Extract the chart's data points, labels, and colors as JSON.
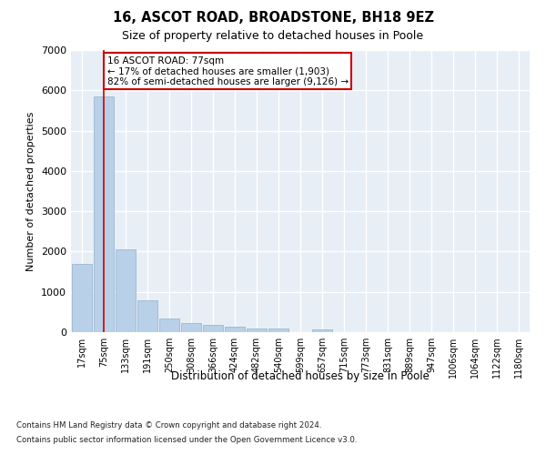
{
  "title1": "16, ASCOT ROAD, BROADSTONE, BH18 9EZ",
  "title2": "Size of property relative to detached houses in Poole",
  "xlabel": "Distribution of detached houses by size in Poole",
  "ylabel": "Number of detached properties",
  "categories": [
    "17sqm",
    "75sqm",
    "133sqm",
    "191sqm",
    "250sqm",
    "308sqm",
    "366sqm",
    "424sqm",
    "482sqm",
    "540sqm",
    "599sqm",
    "657sqm",
    "715sqm",
    "773sqm",
    "831sqm",
    "889sqm",
    "947sqm",
    "1006sqm",
    "1064sqm",
    "1122sqm",
    "1180sqm"
  ],
  "values": [
    1700,
    5850,
    2050,
    790,
    340,
    225,
    170,
    130,
    95,
    80,
    0,
    60,
    0,
    0,
    0,
    0,
    0,
    0,
    0,
    0,
    0
  ],
  "bar_color": "#b8d0e8",
  "bar_edge_color": "#9ab8d0",
  "annotation_line1": "16 ASCOT ROAD: 77sqm",
  "annotation_line2": "← 17% of detached houses are smaller (1,903)",
  "annotation_line3": "82% of semi-detached houses are larger (9,126) →",
  "annotation_box_color": "#ffffff",
  "annotation_box_edge": "#cc0000",
  "vline_color": "#cc0000",
  "vline_x_index": 1,
  "ylim": [
    0,
    7000
  ],
  "yticks": [
    0,
    1000,
    2000,
    3000,
    4000,
    5000,
    6000,
    7000
  ],
  "footnote1": "Contains HM Land Registry data © Crown copyright and database right 2024.",
  "footnote2": "Contains public sector information licensed under the Open Government Licence v3.0.",
  "plot_bg_color": "#e8eef6",
  "fig_bg_color": "#ffffff",
  "grid_color": "#ffffff",
  "spine_color": "#cccccc"
}
